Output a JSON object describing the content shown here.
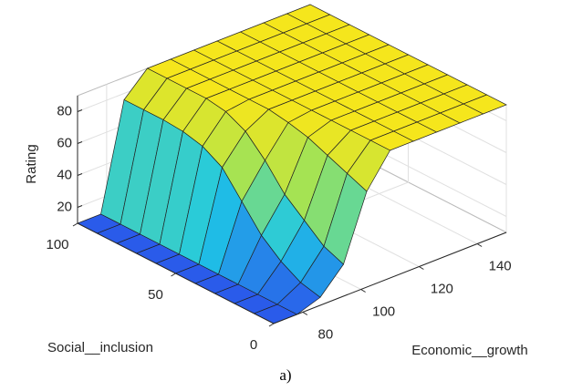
{
  "chart_data": {
    "type": "surface",
    "xlabel": "Economic__growth",
    "ylabel": "Social__inclusion",
    "zlabel": "Rating",
    "caption": "a)",
    "x": [
      70,
      78,
      86,
      94,
      102,
      110,
      118,
      126,
      134,
      142,
      150
    ],
    "y": [
      0,
      10,
      20,
      30,
      40,
      50,
      60,
      70,
      80,
      90,
      100
    ],
    "z": [
      [
        10,
        10,
        15,
        30,
        70,
        90,
        90,
        90,
        90,
        90,
        90
      ],
      [
        10,
        10,
        18,
        35,
        75,
        90,
        90,
        90,
        90,
        90,
        90
      ],
      [
        10,
        10,
        25,
        45,
        80,
        90,
        90,
        90,
        90,
        90,
        90
      ],
      [
        10,
        10,
        35,
        55,
        85,
        90,
        90,
        90,
        90,
        90,
        90
      ],
      [
        10,
        10,
        50,
        70,
        88,
        90,
        90,
        90,
        90,
        90,
        90
      ],
      [
        10,
        10,
        65,
        82,
        90,
        90,
        90,
        90,
        90,
        90,
        90
      ],
      [
        10,
        10,
        72,
        88,
        90,
        90,
        90,
        90,
        90,
        90,
        90
      ],
      [
        10,
        10,
        75,
        90,
        90,
        90,
        90,
        90,
        90,
        90,
        90
      ],
      [
        10,
        10,
        76,
        90,
        90,
        90,
        90,
        90,
        90,
        90,
        90
      ],
      [
        10,
        10,
        76,
        90,
        90,
        90,
        90,
        90,
        90,
        90,
        90
      ],
      [
        10,
        10,
        76,
        90,
        90,
        90,
        90,
        90,
        90,
        90,
        90
      ]
    ],
    "xlim": [
      70,
      150
    ],
    "ylim": [
      0,
      100
    ],
    "zlim": [
      10,
      90
    ],
    "xticks": [
      80,
      100,
      120,
      140
    ],
    "yticks": [
      0,
      50,
      100
    ],
    "zticks": [
      20,
      40,
      60,
      80
    ],
    "grid": true,
    "colormap": [
      "#2a5bea",
      "#1ec8e6",
      "#9be35a",
      "#f5e61c"
    ]
  }
}
